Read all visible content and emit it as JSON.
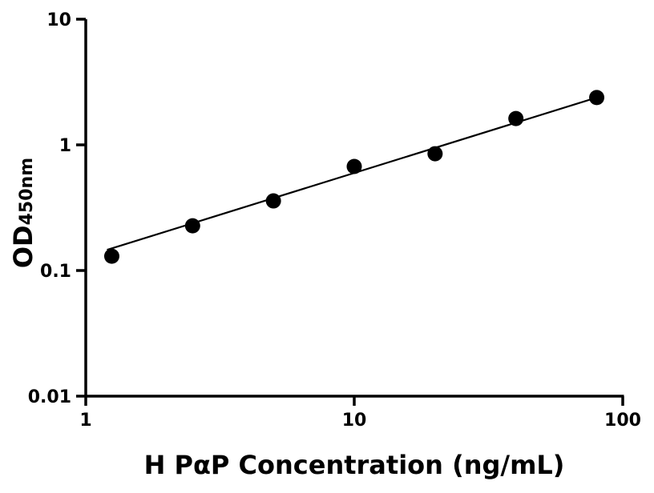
{
  "chart_data": {
    "type": "scatter",
    "xlabel": "H PαP Concentration (ng/mL)",
    "ylabel": "OD",
    "ylabel_subscript": "450nm",
    "x_scale": "log",
    "y_scale": "log",
    "xlim": [
      1,
      100
    ],
    "ylim": [
      0.01,
      10
    ],
    "x_ticks": [
      {
        "value": 1,
        "label": "1"
      },
      {
        "value": 10,
        "label": "10"
      },
      {
        "value": 100,
        "label": "100"
      }
    ],
    "y_ticks": [
      {
        "value": 0.01,
        "label": "0.01"
      },
      {
        "value": 0.1,
        "label": "0.1"
      },
      {
        "value": 1,
        "label": "1"
      },
      {
        "value": 10,
        "label": "10"
      }
    ],
    "grid": false,
    "points": {
      "x": [
        1.25,
        2.5,
        5,
        10,
        20,
        40,
        80
      ],
      "y": [
        0.13,
        0.227,
        0.358,
        0.673,
        0.85,
        1.62,
        2.38
      ],
      "color": "#000000"
    },
    "fit_line": {
      "x": [
        1.2,
        80
      ],
      "y": [
        0.146,
        2.38
      ],
      "color": "#000000"
    }
  }
}
